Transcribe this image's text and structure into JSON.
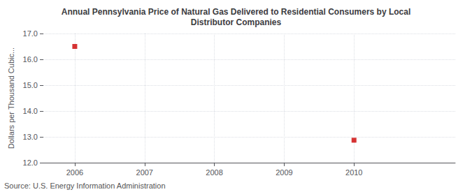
{
  "chart_data": {
    "type": "scatter",
    "title": "Annual Pennsylvania Price of Natural Gas Delivered to Residential Consumers by Local\nDistributor Companies",
    "ylabel": "Dollars per Thousand Cubic...",
    "annotations": [
      "Source: U.S. Energy Information Administration"
    ],
    "x": [
      2006,
      2010
    ],
    "values": [
      16.5,
      12.87
    ],
    "color": "#cc0000",
    "marker": "square",
    "xlim": [
      2005.55,
      2011.45
    ],
    "xticks": [
      2006,
      2007,
      2008,
      2009,
      2010
    ],
    "ylim": [
      12.0,
      17.0
    ],
    "yticks": [
      {
        "value": 12.0,
        "label": "12.0"
      },
      {
        "value": 13.0,
        "label": "13.0"
      },
      {
        "value": 14.0,
        "label": "14.0"
      },
      {
        "value": 15.0,
        "label": "15.0"
      },
      {
        "value": 16.0,
        "label": "16.0"
      },
      {
        "value": 17.0,
        "label": "17.0"
      }
    ],
    "grid": true
  }
}
